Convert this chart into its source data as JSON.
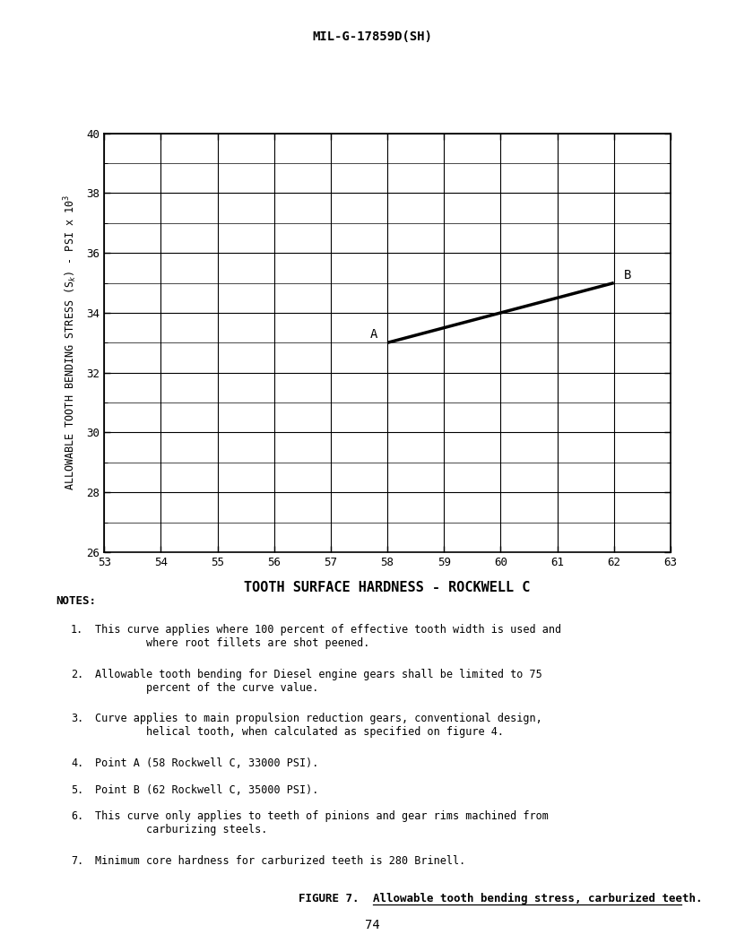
{
  "header": "MIL-G-17859D(SH)",
  "xlabel": "TOOTH SURFACE HARDNESS - ROCKWELL C",
  "ylabel_line1": "ALLOWABLE TOOTH BENDING STRESS (S",
  "ylabel_sub": "k",
  "ylabel_line2": ") - PSI x 10",
  "ylabel_sup": "3",
  "xlim": [
    53,
    63
  ],
  "ylim": [
    26,
    40
  ],
  "xticks": [
    53,
    54,
    55,
    56,
    57,
    58,
    59,
    60,
    61,
    62,
    63
  ],
  "yticks": [
    26,
    28,
    30,
    32,
    34,
    36,
    38,
    40
  ],
  "line_x": [
    58,
    62
  ],
  "line_y": [
    33,
    35
  ],
  "point_A": [
    58,
    33
  ],
  "point_B": [
    62,
    35
  ],
  "label_A": "A",
  "label_B": "B",
  "caption_prefix": "FIGURE 7.  ",
  "caption_underlined": "Allowable tooth bending stress, carburized teeth.",
  "page_number": "74",
  "notes_title": "NOTES:",
  "note_numbers": [
    "1.",
    "2.",
    "3.",
    "4.",
    "5.",
    "6.",
    "7."
  ],
  "notes": [
    "This curve applies where 100 percent of effective tooth width is used and\n        where root fillets are shot peened.",
    "Allowable tooth bending for Diesel engine gears shall be limited to 75\n        percent of the curve value.",
    "Curve applies to main propulsion reduction gears, conventional design,\n        helical tooth, when calculated as specified on figure 4.",
    "Point A (58 Rockwell C, 33000 PSI).",
    "Point B (62 Rockwell C, 35000 PSI).",
    "This curve only applies to teeth of pinions and gear rims machined from\n        carburizing steels.",
    "Minimum core hardness for carburized teeth is 280 Brinell."
  ],
  "line_color": "#000000",
  "line_width": 2.5,
  "background_color": "#ffffff",
  "grid_color": "#000000"
}
